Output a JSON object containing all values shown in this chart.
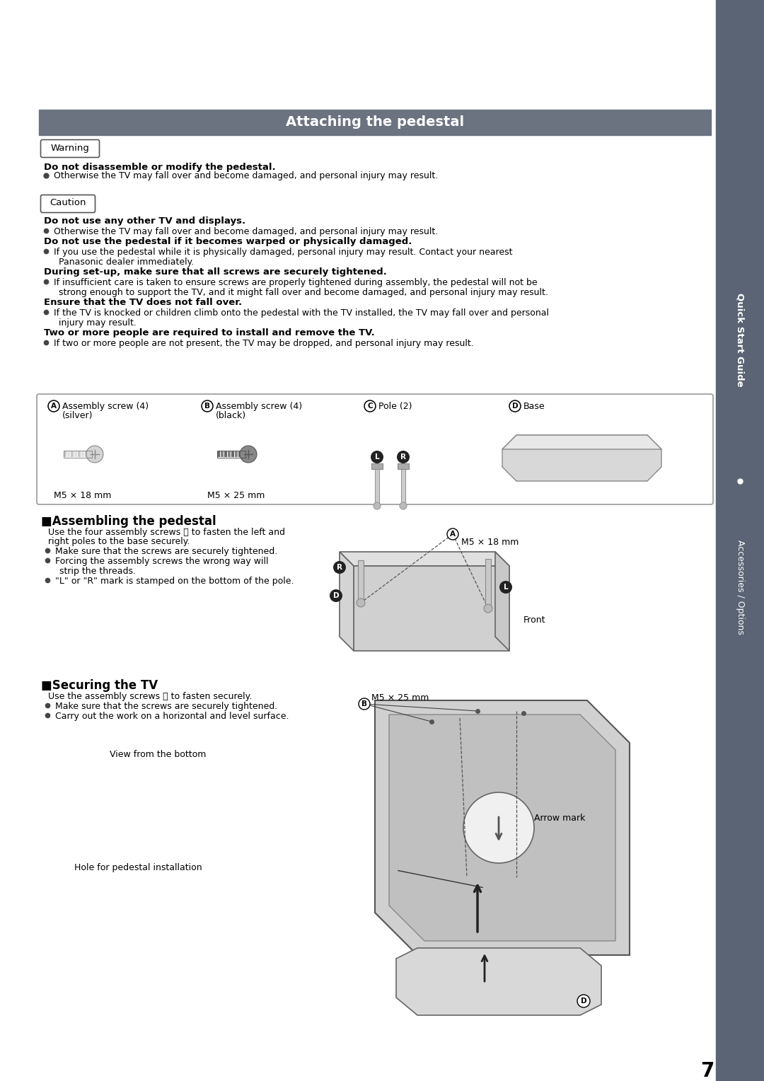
{
  "title": "Attaching the pedestal",
  "title_bg": "#6b7280",
  "title_color": "#ffffff",
  "page_bg": "#ffffff",
  "sidebar_bg": "#5a6474",
  "sidebar_text": "Quick Start Guide",
  "sidebar_subtext": "Accessories / Options",
  "page_number": "7",
  "warning_label": "Warning",
  "warning_bold": "Do not disassemble or modify the pedestal.",
  "warning_bullet": "Otherwise the TV may fall over and become damaged, and personal injury may result.",
  "caution_label": "Caution",
  "caution_items": [
    {
      "type": "bold",
      "text": "Do not use any other TV and displays."
    },
    {
      "type": "bullet",
      "text": "Otherwise the TV may fall over and become damaged, and personal injury may result."
    },
    {
      "type": "bold",
      "text": "Do not use the pedestal if it becomes warped or physically damaged."
    },
    {
      "type": "bullet",
      "text": "If you use the pedestal while it is physically damaged, personal injury may result. Contact your nearest"
    },
    {
      "type": "indent",
      "text": "Panasonic dealer immediately."
    },
    {
      "type": "bold",
      "text": "During set-up, make sure that all screws are securely tightened."
    },
    {
      "type": "bullet",
      "text": "If insufficient care is taken to ensure screws are properly tightened during assembly, the pedestal will not be"
    },
    {
      "type": "indent",
      "text": "strong enough to support the TV, and it might fall over and become damaged, and personal injury may result."
    },
    {
      "type": "bold",
      "text": "Ensure that the TV does not fall over."
    },
    {
      "type": "bullet",
      "text": "If the TV is knocked or children climb onto the pedestal with the TV installed, the TV may fall over and personal"
    },
    {
      "type": "indent",
      "text": "injury may result."
    },
    {
      "type": "bold",
      "text": "Two or more people are required to install and remove the TV."
    },
    {
      "type": "bullet",
      "text": "If two or more people are not present, the TV may be dropped, and personal injury may result."
    }
  ],
  "section1_title": "■Assembling the pedestal",
  "section1_intro1": "Use the four assembly screws Ⓐ to fasten the left and",
  "section1_intro2": "right poles to the base securely.",
  "section1_bullets": [
    "Make sure that the screws are securely tightened.",
    "Forcing the assembly screws the wrong way will",
    "strip the threads.",
    "\"L\" or \"R\" mark is stamped on the bottom of the pole."
  ],
  "section2_title": "■Securing the TV",
  "section2_intro": "Use the assembly screws Ⓑ to fasten securely.",
  "section2_bullets": [
    "Make sure that the screws are securely tightened.",
    "Carry out the work on a horizontal and level surface."
  ],
  "parts_labels": [
    "Assembly screw (4)",
    "Assembly screw (4)",
    "Pole (2)",
    "Base"
  ],
  "parts_subs": [
    "(silver)",
    "(black)",
    "",
    ""
  ],
  "parts_letters": [
    "A",
    "B",
    "C",
    "D"
  ],
  "parts_mm": [
    "M5 × 18 mm",
    "M5 × 25 mm",
    "",
    ""
  ]
}
